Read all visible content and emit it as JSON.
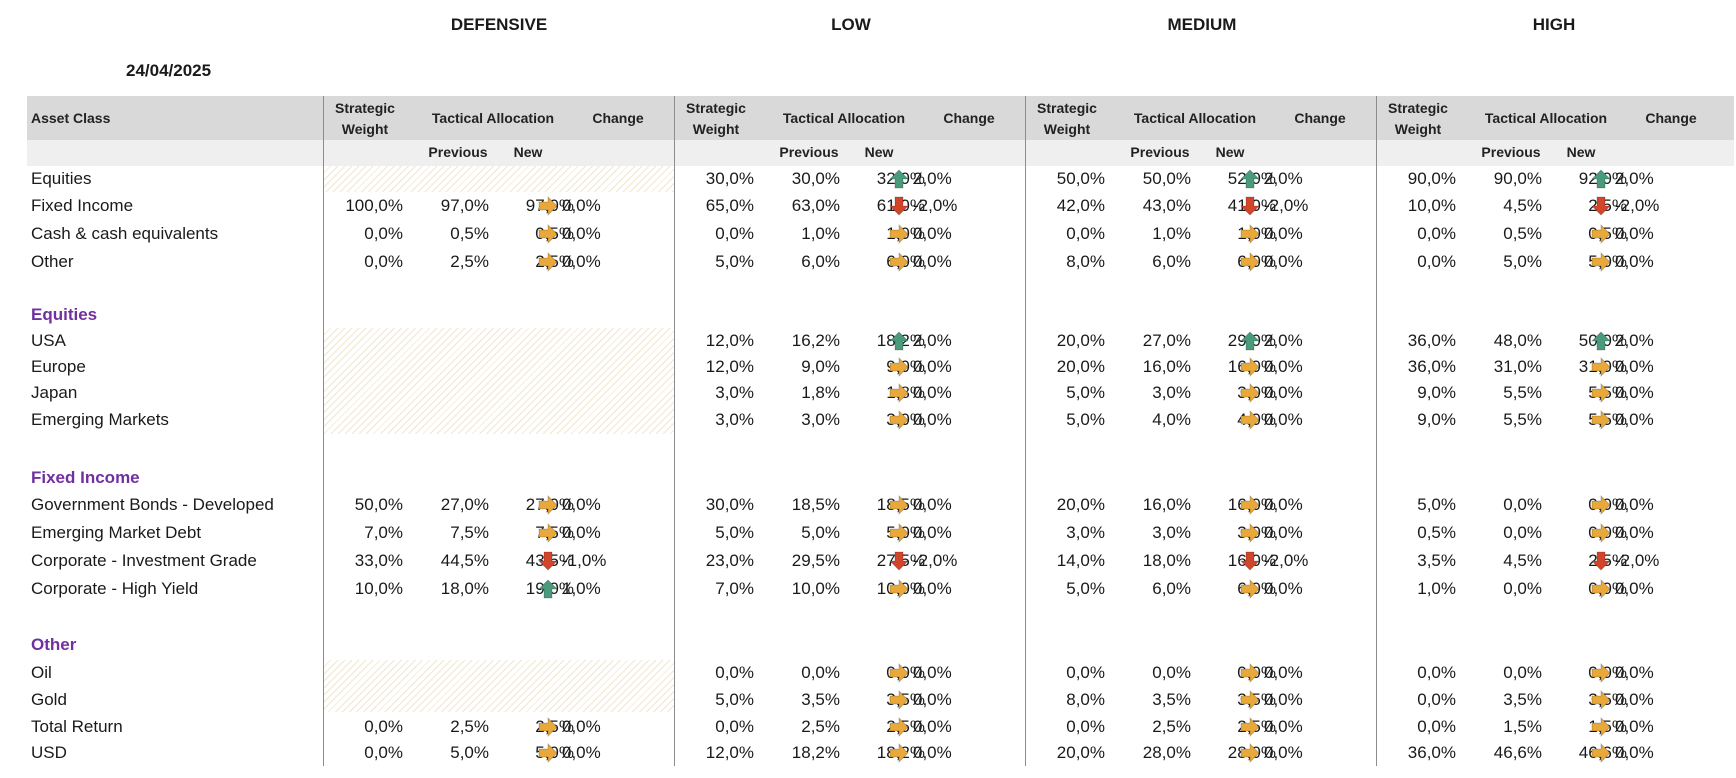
{
  "date": "24/04/2025",
  "profiles": [
    "DEFENSIVE",
    "LOW",
    "MEDIUM",
    "HIGH"
  ],
  "headers": {
    "asset_class": "Asset Class",
    "strategic_weight": [
      "Strategic",
      "Weight"
    ],
    "tactical_allocation": "Tactical Allocation",
    "change": "Change",
    "previous": "Previous",
    "new": "New"
  },
  "rows": [
    {
      "label": "Equities",
      "cells": [
        null,
        [
          "30,0%",
          "30,0%",
          "32,0%",
          "2,0%",
          "up"
        ],
        [
          "50,0%",
          "50,0%",
          "52,0%",
          "2,0%",
          "up"
        ],
        [
          "90,0%",
          "90,0%",
          "92,0%",
          "2,0%",
          "up"
        ]
      ]
    },
    {
      "label": "Fixed Income",
      "cells": [
        [
          "100,0%",
          "97,0%",
          "97,0%",
          "0,0%",
          "flat"
        ],
        [
          "65,0%",
          "63,0%",
          "61,0%",
          "-2,0%",
          "down"
        ],
        [
          "42,0%",
          "43,0%",
          "41,0%",
          "-2,0%",
          "down"
        ],
        [
          "10,0%",
          "4,5%",
          "2,5%",
          "-2,0%",
          "down"
        ]
      ]
    },
    {
      "label": "Cash & cash equivalents",
      "cells": [
        [
          "0,0%",
          "0,5%",
          "0,5%",
          "0,0%",
          "flat"
        ],
        [
          "0,0%",
          "1,0%",
          "1,0%",
          "0,0%",
          "flat"
        ],
        [
          "0,0%",
          "1,0%",
          "1,0%",
          "0,0%",
          "flat"
        ],
        [
          "0,0%",
          "0,5%",
          "0,5%",
          "0,0%",
          "flat"
        ]
      ]
    },
    {
      "label": "Other",
      "cells": [
        [
          "0,0%",
          "2,5%",
          "2,5%",
          "0,0%",
          "flat"
        ],
        [
          "5,0%",
          "6,0%",
          "6,0%",
          "0,0%",
          "flat"
        ],
        [
          "8,0%",
          "6,0%",
          "6,0%",
          "0,0%",
          "flat"
        ],
        [
          "0,0%",
          "5,0%",
          "5,0%",
          "0,0%",
          "flat"
        ]
      ]
    },
    {
      "section": "Equities"
    },
    {
      "label": "USA",
      "cells": [
        null,
        [
          "12,0%",
          "16,2%",
          "18,2%",
          "2,0%",
          "up"
        ],
        [
          "20,0%",
          "27,0%",
          "29,0%",
          "2,0%",
          "up"
        ],
        [
          "36,0%",
          "48,0%",
          "50,0%",
          "2,0%",
          "up"
        ]
      ]
    },
    {
      "label": "Europe",
      "cells": [
        null,
        [
          "12,0%",
          "9,0%",
          "9,0%",
          "0,0%",
          "flat"
        ],
        [
          "20,0%",
          "16,0%",
          "16,0%",
          "0,0%",
          "flat"
        ],
        [
          "36,0%",
          "31,0%",
          "31,0%",
          "0,0%",
          "flat"
        ]
      ]
    },
    {
      "label": "Japan",
      "cells": [
        null,
        [
          "3,0%",
          "1,8%",
          "1,8%",
          "0,0%",
          "flat"
        ],
        [
          "5,0%",
          "3,0%",
          "3,0%",
          "0,0%",
          "flat"
        ],
        [
          "9,0%",
          "5,5%",
          "5,5%",
          "0,0%",
          "flat"
        ]
      ]
    },
    {
      "label": "Emerging Markets",
      "cells": [
        null,
        [
          "3,0%",
          "3,0%",
          "3,0%",
          "0,0%",
          "flat"
        ],
        [
          "5,0%",
          "4,0%",
          "4,0%",
          "0,0%",
          "flat"
        ],
        [
          "9,0%",
          "5,5%",
          "5,5%",
          "0,0%",
          "flat"
        ]
      ]
    },
    {
      "section": "Fixed Income"
    },
    {
      "label": "Government Bonds - Developed",
      "cells": [
        [
          "50,0%",
          "27,0%",
          "27,0%",
          "0,0%",
          "flat"
        ],
        [
          "30,0%",
          "18,5%",
          "18,5%",
          "0,0%",
          "flat"
        ],
        [
          "20,0%",
          "16,0%",
          "16,0%",
          "0,0%",
          "flat"
        ],
        [
          "5,0%",
          "0,0%",
          "0,0%",
          "0,0%",
          "flat"
        ]
      ]
    },
    {
      "label": "Emerging Market Debt",
      "cells": [
        [
          "7,0%",
          "7,5%",
          "7,5%",
          "0,0%",
          "flat"
        ],
        [
          "5,0%",
          "5,0%",
          "5,0%",
          "0,0%",
          "flat"
        ],
        [
          "3,0%",
          "3,0%",
          "3,0%",
          "0,0%",
          "flat"
        ],
        [
          "0,5%",
          "0,0%",
          "0,0%",
          "0,0%",
          "flat"
        ]
      ]
    },
    {
      "label": "Corporate - Investment Grade",
      "cells": [
        [
          "33,0%",
          "44,5%",
          "43,5%",
          "-1,0%",
          "down"
        ],
        [
          "23,0%",
          "29,5%",
          "27,5%",
          "-2,0%",
          "down"
        ],
        [
          "14,0%",
          "18,0%",
          "16,0%",
          "-2,0%",
          "down"
        ],
        [
          "3,5%",
          "4,5%",
          "2,5%",
          "-2,0%",
          "down"
        ]
      ]
    },
    {
      "label": "Corporate - High Yield",
      "cells": [
        [
          "10,0%",
          "18,0%",
          "19,0%",
          "1,0%",
          "up"
        ],
        [
          "7,0%",
          "10,0%",
          "10,0%",
          "0,0%",
          "flat"
        ],
        [
          "5,0%",
          "6,0%",
          "6,0%",
          "0,0%",
          "flat"
        ],
        [
          "1,0%",
          "0,0%",
          "0,0%",
          "0,0%",
          "flat"
        ]
      ]
    },
    {
      "section": "Other"
    },
    {
      "label": "Oil",
      "cells": [
        null,
        [
          "0,0%",
          "0,0%",
          "0,0%",
          "0,0%",
          "flat"
        ],
        [
          "0,0%",
          "0,0%",
          "0,0%",
          "0,0%",
          "flat"
        ],
        [
          "0,0%",
          "0,0%",
          "0,0%",
          "0,0%",
          "flat"
        ]
      ]
    },
    {
      "label": "Gold",
      "cells": [
        null,
        [
          "5,0%",
          "3,5%",
          "3,5%",
          "0,0%",
          "flat"
        ],
        [
          "8,0%",
          "3,5%",
          "3,5%",
          "0,0%",
          "flat"
        ],
        [
          "0,0%",
          "3,5%",
          "3,5%",
          "0,0%",
          "flat"
        ]
      ]
    },
    {
      "label": "Total Return",
      "cells": [
        [
          "0,0%",
          "2,5%",
          "2,5%",
          "0,0%",
          "flat"
        ],
        [
          "0,0%",
          "2,5%",
          "2,5%",
          "0,0%",
          "flat"
        ],
        [
          "0,0%",
          "2,5%",
          "2,5%",
          "0,0%",
          "flat"
        ],
        [
          "0,0%",
          "1,5%",
          "1,5%",
          "0,0%",
          "flat"
        ]
      ]
    },
    {
      "label": "USD",
      "cells": [
        [
          "0,0%",
          "5,0%",
          "5,0%",
          "0,0%",
          "flat"
        ],
        [
          "12,0%",
          "18,2%",
          "18,2%",
          "0,0%",
          "flat"
        ],
        [
          "20,0%",
          "28,0%",
          "28,0%",
          "0,0%",
          "flat"
        ],
        [
          "36,0%",
          "46,6%",
          "46,6%",
          "0,0%",
          "flat"
        ]
      ]
    }
  ],
  "colors": {
    "header_band": "#d9d9d9",
    "subheader_band": "#efefef",
    "section_text": "#7030a0",
    "arrow_up": "#4a9a7c",
    "arrow_down": "#d2452b",
    "arrow_flat": "#e8a83a"
  },
  "icons": {
    "up": "arrow-up-icon",
    "down": "arrow-down-icon",
    "flat": "arrow-right-icon"
  }
}
